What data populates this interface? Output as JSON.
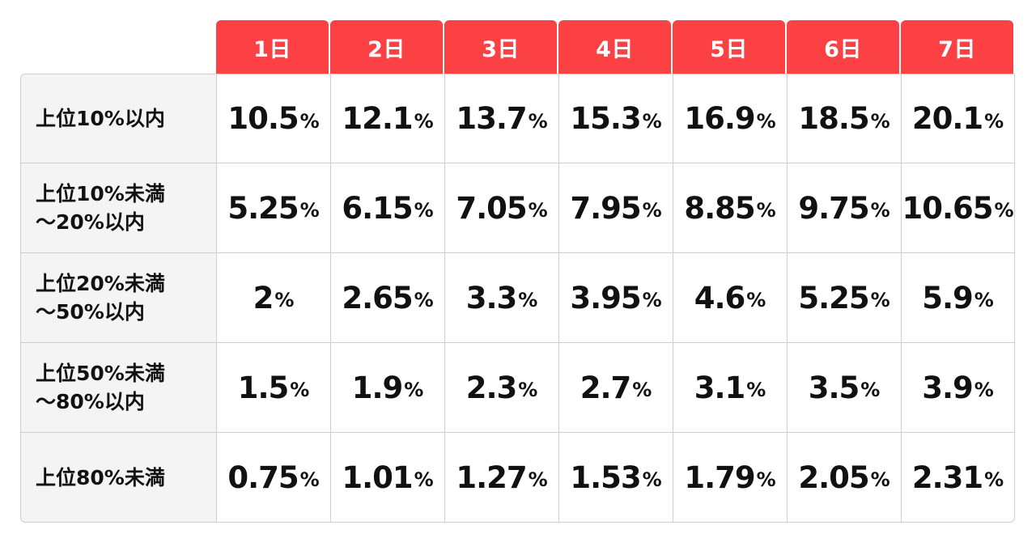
{
  "table": {
    "days": [
      "1日",
      "2日",
      "3日",
      "4日",
      "5日",
      "6日",
      "7日"
    ],
    "percent_sign": "%",
    "rows": [
      {
        "label": "上位10%以内",
        "values": [
          "10.5",
          "12.1",
          "13.7",
          "15.3",
          "16.9",
          "18.5",
          "20.1"
        ]
      },
      {
        "label": "上位10%未満\n～20%以内",
        "values": [
          "5.25",
          "6.15",
          "7.05",
          "7.95",
          "8.85",
          "9.75",
          "10.65"
        ]
      },
      {
        "label": "上位20%未満\n～50%以内",
        "values": [
          "2",
          "2.65",
          "3.3",
          "3.95",
          "4.6",
          "5.25",
          "5.9"
        ]
      },
      {
        "label": "上位50%未満\n～80%以内",
        "values": [
          "1.5",
          "1.9",
          "2.3",
          "2.7",
          "3.1",
          "3.5",
          "3.9"
        ]
      },
      {
        "label": "上位80%未満",
        "values": [
          "0.75",
          "1.01",
          "1.27",
          "1.53",
          "1.79",
          "2.05",
          "2.31"
        ]
      }
    ],
    "colors": {
      "header_bg": "#fb4143",
      "header_text": "#ffffff",
      "label_bg": "#f4f4f4",
      "border": "#cfcfcf"
    }
  }
}
